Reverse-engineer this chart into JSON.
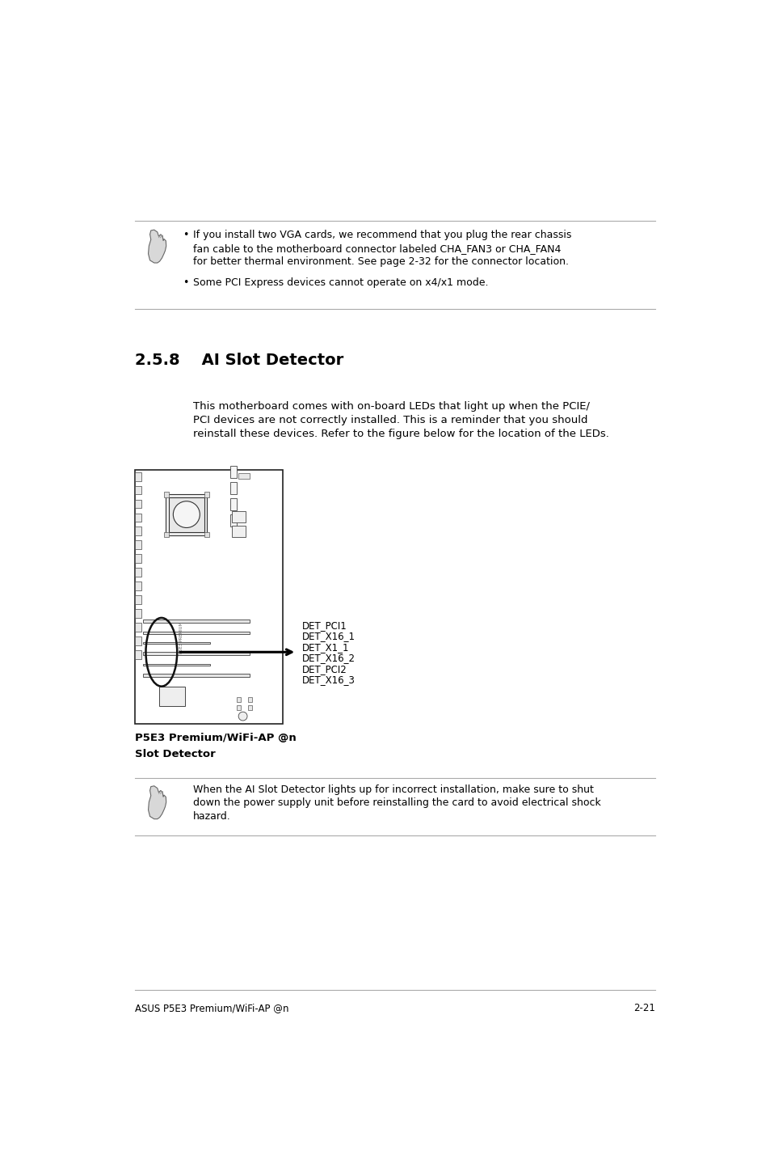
{
  "bg_color": "#ffffff",
  "text_color": "#000000",
  "page_width": 9.54,
  "page_height": 14.38,
  "section_header": "2.5.8    AI Slot Detector",
  "bullet_note_1_lines": [
    "If you install two VGA cards, we recommend that you plug the rear chassis",
    "fan cable to the motherboard connector labeled CHA_FAN3 or CHA_FAN4",
    "for better thermal environment. See page 2-32 for the connector location."
  ],
  "bullet_note_2": "Some PCI Express devices cannot operate on x4/x1 mode.",
  "body_text_lines": [
    "This motherboard comes with on-board LEDs that light up when the PCIE/",
    "PCI devices are not correctly installed. This is a reminder that you should",
    "reinstall these devices. Refer to the figure below for the location of the LEDs."
  ],
  "caption_line1": "P5E3 Premium/WiFi-AP @n",
  "caption_line2": "Slot Detector",
  "det_labels": [
    "DET_PCI1",
    "DET_X16_1",
    "DET_X1_1",
    "DET_X16_2",
    "DET_PCI2",
    "DET_X16_3"
  ],
  "note_bottom_lines": [
    "When the AI Slot Detector lights up for incorrect installation, make sure to shut",
    "down the power supply unit before reinstalling the card to avoid electrical shock",
    "hazard."
  ],
  "footer_left": "ASUS P5E3 Premium/WiFi-AP @n",
  "footer_right": "2-21"
}
